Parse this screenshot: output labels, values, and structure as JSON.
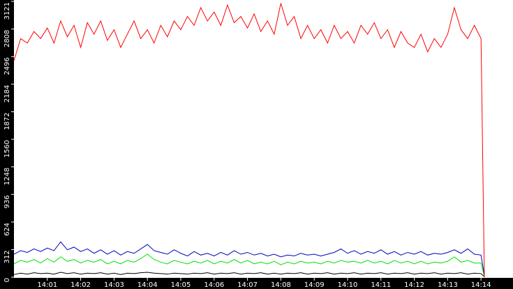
{
  "chart_data": {
    "type": "line",
    "x": [
      0,
      0.2,
      0.4,
      0.6,
      0.8,
      1.0,
      1.2,
      1.4,
      1.6,
      1.8,
      2.0,
      2.2,
      2.4,
      2.6,
      2.8,
      3.0,
      3.2,
      3.4,
      3.6,
      3.8,
      4.0,
      4.2,
      4.4,
      4.6,
      4.8,
      5.0,
      5.2,
      5.4,
      5.6,
      5.8,
      6.0,
      6.2,
      6.4,
      6.6,
      6.8,
      7.0,
      7.2,
      7.4,
      7.6,
      7.8,
      8.0,
      8.2,
      8.4,
      8.6,
      8.8,
      9.0,
      9.2,
      9.4,
      9.6,
      9.8,
      10.0,
      10.2,
      10.4,
      10.6,
      10.8,
      11.0,
      11.2,
      11.4,
      11.6,
      11.8,
      12.0,
      12.2,
      12.4,
      12.6,
      12.8,
      13.0,
      13.2,
      13.4,
      13.6,
      13.8,
      14.0,
      14.1
    ],
    "series": [
      {
        "color": "#ff0000",
        "values": [
          2450,
          2700,
          2650,
          2780,
          2700,
          2820,
          2650,
          2900,
          2720,
          2850,
          2600,
          2880,
          2750,
          2900,
          2680,
          2800,
          2600,
          2750,
          2900,
          2700,
          2800,
          2650,
          2850,
          2720,
          2900,
          2800,
          2950,
          2850,
          3050,
          2900,
          3000,
          2850,
          3080,
          2880,
          2950,
          2820,
          2980,
          2780,
          2900,
          2750,
          3100,
          2850,
          2950,
          2700,
          2850,
          2700,
          2800,
          2650,
          2850,
          2700,
          2780,
          2650,
          2850,
          2750,
          2880,
          2700,
          2800,
          2600,
          2780,
          2650,
          2600,
          2750,
          2550,
          2700,
          2600,
          2750,
          3050,
          2800,
          2700,
          2850,
          2700,
          0
        ]
      },
      {
        "color": "#0000c0",
        "values": [
          260,
          300,
          280,
          320,
          290,
          330,
          300,
          400,
          310,
          340,
          290,
          320,
          270,
          310,
          260,
          300,
          250,
          290,
          270,
          320,
          370,
          300,
          280,
          260,
          310,
          270,
          240,
          290,
          250,
          270,
          240,
          280,
          250,
          300,
          260,
          280,
          250,
          270,
          240,
          260,
          230,
          250,
          240,
          270,
          250,
          260,
          240,
          260,
          280,
          320,
          270,
          300,
          260,
          290,
          270,
          310,
          260,
          290,
          250,
          280,
          260,
          290,
          250,
          270,
          260,
          280,
          310,
          270,
          320,
          260,
          250,
          20
        ]
      },
      {
        "color": "#00e000",
        "values": [
          150,
          190,
          170,
          200,
          160,
          210,
          170,
          230,
          180,
          200,
          160,
          190,
          170,
          200,
          150,
          180,
          150,
          190,
          170,
          210,
          260,
          200,
          170,
          150,
          190,
          170,
          150,
          180,
          160,
          190,
          150,
          180,
          160,
          200,
          160,
          190,
          150,
          170,
          150,
          180,
          140,
          170,
          150,
          180,
          160,
          170,
          150,
          180,
          160,
          190,
          170,
          180,
          160,
          190,
          160,
          180,
          150,
          190,
          160,
          180,
          150,
          180,
          150,
          170,
          160,
          180,
          230,
          170,
          190,
          160,
          160,
          10
        ]
      },
      {
        "color": "#000000",
        "values": [
          30,
          45,
          35,
          50,
          40,
          45,
          35,
          55,
          40,
          50,
          35,
          45,
          40,
          50,
          35,
          45,
          30,
          45,
          40,
          50,
          55,
          45,
          40,
          35,
          45,
          40,
          35,
          45,
          40,
          50,
          35,
          45,
          40,
          50,
          35,
          45,
          40,
          50,
          35,
          45,
          35,
          45,
          40,
          50,
          35,
          45,
          40,
          50,
          35,
          45,
          40,
          50,
          35,
          45,
          40,
          50,
          35,
          45,
          40,
          50,
          35,
          45,
          40,
          50,
          35,
          45,
          40,
          50,
          35,
          45,
          40,
          5
        ]
      }
    ],
    "xlim": [
      0,
      15
    ],
    "ylim": [
      0,
      3121
    ],
    "xticks": [
      {
        "value": 1,
        "label": "14:01"
      },
      {
        "value": 2,
        "label": "14:02"
      },
      {
        "value": 3,
        "label": "14:03"
      },
      {
        "value": 4,
        "label": "14:04"
      },
      {
        "value": 5,
        "label": "14:05"
      },
      {
        "value": 6,
        "label": "14:06"
      },
      {
        "value": 7,
        "label": "14:07"
      },
      {
        "value": 8,
        "label": "14:08"
      },
      {
        "value": 9,
        "label": "14:09"
      },
      {
        "value": 10,
        "label": "14:10"
      },
      {
        "value": 11,
        "label": "14:11"
      },
      {
        "value": 12,
        "label": "14:12"
      },
      {
        "value": 13,
        "label": "14:13"
      },
      {
        "value": 14,
        "label": "14:14"
      }
    ],
    "yticks": [
      0,
      312,
      624,
      936,
      1248,
      1560,
      1872,
      2184,
      2496,
      2808,
      3121
    ]
  }
}
